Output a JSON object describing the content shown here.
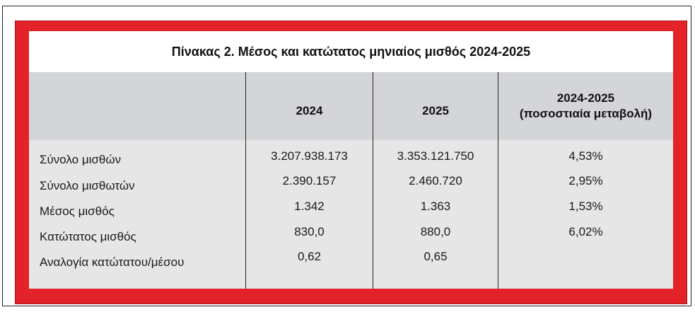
{
  "table": {
    "title": "Πίνακας 2. Μέσος και κατώτατος μηνιαίος μισθός 2024-2025",
    "headers": {
      "label": "",
      "col_2024": "2024",
      "col_2025": "2025",
      "change_line1": "2024-2025",
      "change_line2": "(ποσοστιαία μεταβολή)"
    },
    "rows": [
      {
        "label": "Σύνολο μισθών",
        "v2024": "3.207.938.173",
        "v2025": "3.353.121.750",
        "change": "4,53%"
      },
      {
        "label": "Σύνολο μισθωτών",
        "v2024": "2.390.157",
        "v2025": "2.460.720",
        "change": "2,95%"
      },
      {
        "label": "Μέσος μισθός",
        "v2024": "1.342",
        "v2025": "1.363",
        "change": "1,53%"
      },
      {
        "label": "Κατώτατος μισθός",
        "v2024": "830,0",
        "v2025": "880,0",
        "change": "6,02%"
      },
      {
        "label": "Αναλογία κατώτατου/μέσου",
        "v2024": "0,62",
        "v2025": "0,65",
        "change": ""
      }
    ]
  },
  "colors": {
    "frame_red": "#e32229",
    "header_gray": "#d4d5d8",
    "body_gray": "#e6e6e6"
  }
}
